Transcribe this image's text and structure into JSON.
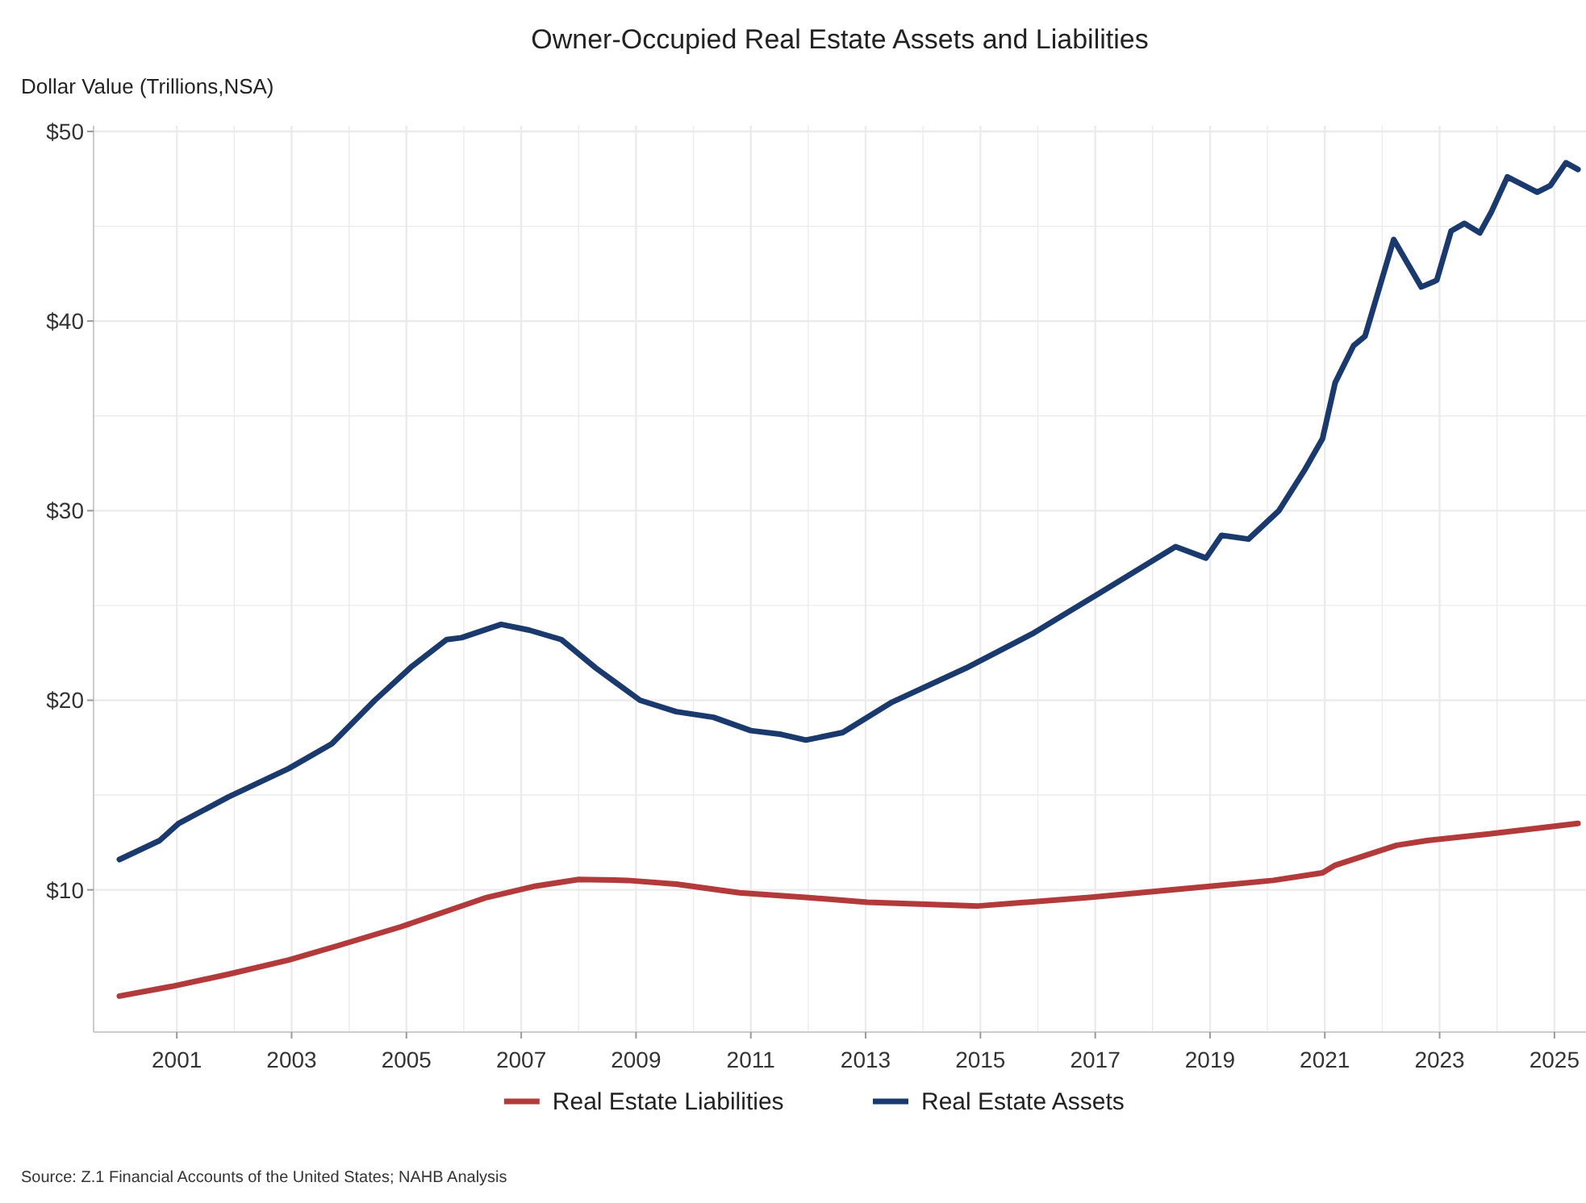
{
  "chart_data": {
    "type": "line",
    "title": "Owner-Occupied Real Estate Assets and Liabilities",
    "ylabel": "Dollar Value (Trillions,NSA)",
    "annotations": [
      "Source: Z.1 Financial Accounts of the United States; NAHB Analysis"
    ],
    "xlim": [
      1999.55,
      2025.55
    ],
    "xticks": [
      2001,
      2003,
      2005,
      2007,
      2009,
      2011,
      2013,
      2015,
      2017,
      2019,
      2021,
      2023,
      2025
    ],
    "ylim": [
      2.5,
      50.3
    ],
    "yticks": [
      {
        "value": 10,
        "label": "$10"
      },
      {
        "value": 20,
        "label": "$20"
      },
      {
        "value": 30,
        "label": "$30"
      },
      {
        "value": 40,
        "label": "$40"
      },
      {
        "value": 50,
        "label": "$50"
      }
    ],
    "grid": true,
    "legend": "bottom",
    "line_style": "solid",
    "marker": "none",
    "series": [
      {
        "name": "Real Estate Liabilities",
        "color": "#b33a3a",
        "x": [
          2000.0,
          2000.9,
          2001.9,
          2002.95,
          2003.8,
          2004.9,
          2006.4,
          2007.25,
          2008.0,
          2008.85,
          2009.7,
          2010.8,
          2011.96,
          2013.03,
          2014.96,
          2016.9,
          2018.5,
          2020.1,
          2020.96,
          2021.18,
          2022.25,
          2022.78,
          2023.86,
          2024.7,
          2025.41
        ],
        "values": [
          4.4,
          4.9,
          5.55,
          6.3,
          7.05,
          8.05,
          9.6,
          10.2,
          10.55,
          10.5,
          10.3,
          9.85,
          9.6,
          9.35,
          9.15,
          9.6,
          10.05,
          10.5,
          10.9,
          11.3,
          12.35,
          12.6,
          12.95,
          13.25,
          13.5
        ]
      },
      {
        "name": "Real Estate Assets",
        "color": "#1a3a6e",
        "x": [
          2000.0,
          2000.7,
          2001.03,
          2001.9,
          2002.95,
          2003.7,
          2004.45,
          2005.1,
          2005.7,
          2005.96,
          2006.65,
          2007.14,
          2007.7,
          2008.3,
          2009.07,
          2009.7,
          2010.35,
          2011.0,
          2011.53,
          2011.96,
          2012.6,
          2013.46,
          2014.75,
          2015.9,
          2017.1,
          2018.4,
          2018.93,
          2019.2,
          2019.67,
          2020.2,
          2020.64,
          2020.96,
          2021.18,
          2021.5,
          2021.7,
          2022.2,
          2022.68,
          2022.95,
          2023.2,
          2023.43,
          2023.7,
          2023.9,
          2024.18,
          2024.7,
          2024.93,
          2025.2,
          2025.41
        ],
        "values": [
          11.6,
          12.6,
          13.5,
          14.9,
          16.4,
          17.7,
          20.0,
          21.8,
          23.2,
          23.3,
          24.0,
          23.7,
          23.2,
          21.7,
          20.0,
          19.4,
          19.1,
          18.4,
          18.2,
          17.9,
          18.3,
          19.9,
          21.7,
          23.5,
          25.7,
          28.1,
          27.5,
          28.7,
          28.5,
          30.0,
          32.1,
          33.8,
          36.75,
          38.7,
          39.2,
          44.3,
          41.8,
          42.15,
          44.75,
          45.15,
          44.65,
          45.75,
          47.6,
          46.8,
          47.15,
          48.35,
          48.0
        ]
      }
    ]
  }
}
